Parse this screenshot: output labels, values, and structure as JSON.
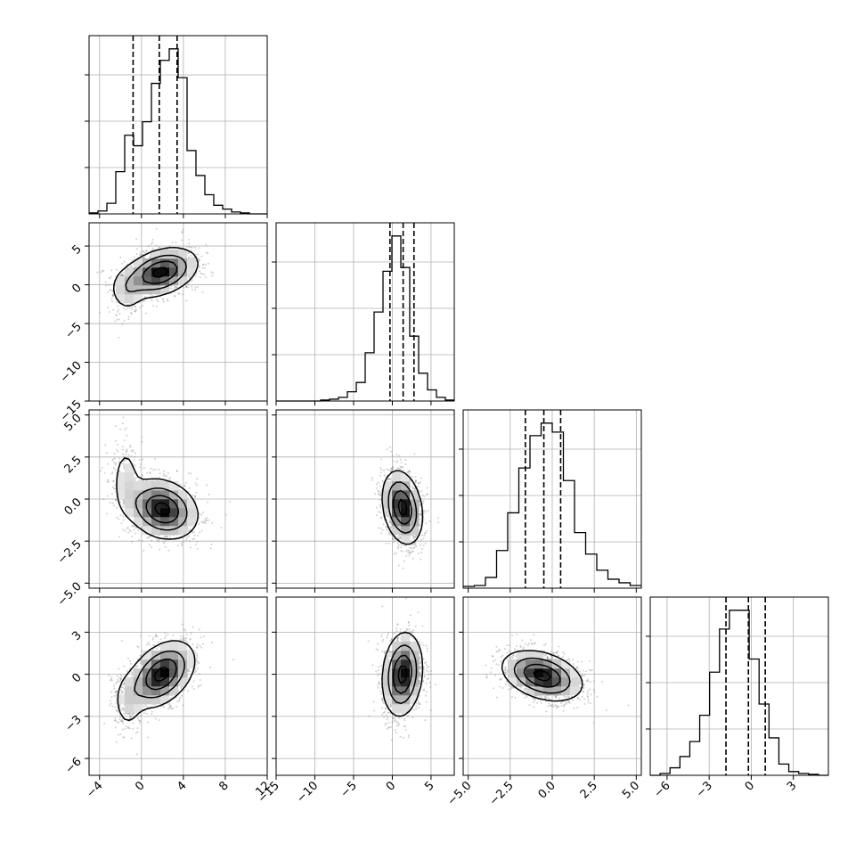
{
  "chart_data": {
    "type": "corner",
    "n_params": 4,
    "params": [
      {
        "range": [
          -5,
          12
        ],
        "ticks": [
          -4,
          0,
          4,
          8,
          12
        ],
        "quantiles": [
          -0.8,
          1.7,
          3.4
        ],
        "hist": [
          0.5,
          1.5,
          5.5,
          22,
          41,
          35.5,
          48,
          68,
          80,
          86,
          71,
          33,
          20,
          10,
          4.5,
          2.5,
          1,
          0.5,
          0,
          0
        ]
      },
      {
        "range": [
          -15,
          8
        ],
        "ticks": [
          -15,
          -10,
          -5,
          0,
          5
        ],
        "quantiles": [
          -0.3,
          1.4,
          2.8
        ],
        "hist": [
          0,
          0,
          0,
          0,
          0,
          0.5,
          1,
          2,
          5,
          10,
          26,
          48,
          70,
          89,
          72,
          35,
          15,
          6,
          2,
          0.5
        ]
      },
      {
        "range": [
          -5.3,
          5.3
        ],
        "ticks": [
          -5.0,
          -2.5,
          0.0,
          2.5,
          5.0
        ],
        "quantiles": [
          -1.6,
          -0.5,
          0.5
        ],
        "hist": [
          1,
          1.5,
          6,
          21,
          42,
          67,
          85,
          92,
          87,
          60,
          31,
          19,
          10,
          5,
          3,
          1.5
        ]
      },
      {
        "range": [
          -7.2,
          5.5
        ],
        "ticks": [
          -6,
          -3,
          0,
          3
        ],
        "quantiles": [
          -1.8,
          -0.2,
          1.0
        ],
        "hist": [
          0,
          1,
          4,
          10,
          18,
          32,
          55,
          78,
          88,
          88,
          62,
          38,
          20,
          6,
          2,
          1,
          0.5,
          0
        ]
      }
    ],
    "pairs": [
      {
        "i": 1,
        "j": 0,
        "center": [
          1.8,
          1.6
        ],
        "sigma": [
          1.8,
          1.6
        ],
        "rho": 0.35,
        "extra": {
          "center": [
            -1.4,
            -0.8
          ],
          "sigma": [
            0.9,
            1.6
          ],
          "w": 0.25
        }
      },
      {
        "i": 2,
        "j": 0,
        "center": [
          2.0,
          -0.6
        ],
        "sigma": [
          1.7,
          0.9
        ],
        "rho": -0.2,
        "extra": {
          "center": [
            -1.5,
            1.2
          ],
          "sigma": [
            0.8,
            1.3
          ],
          "w": 0.22
        }
      },
      {
        "i": 2,
        "j": 1,
        "center": [
          1.3,
          -0.5
        ],
        "sigma": [
          1.3,
          1.1
        ],
        "rho": -0.25
      },
      {
        "i": 3,
        "j": 0,
        "center": [
          1.9,
          0.0
        ],
        "sigma": [
          1.6,
          1.2
        ],
        "rho": 0.4,
        "extra": {
          "center": [
            -1.3,
            -2.0
          ],
          "sigma": [
            0.8,
            1.2
          ],
          "w": 0.22
        }
      },
      {
        "i": 3,
        "j": 1,
        "center": [
          1.3,
          0.0
        ],
        "sigma": [
          1.3,
          1.5
        ],
        "rho": 0.15
      },
      {
        "i": 3,
        "j": 2,
        "center": [
          -0.6,
          -0.1
        ],
        "sigma": [
          1.2,
          0.9
        ],
        "rho": -0.35
      }
    ]
  }
}
